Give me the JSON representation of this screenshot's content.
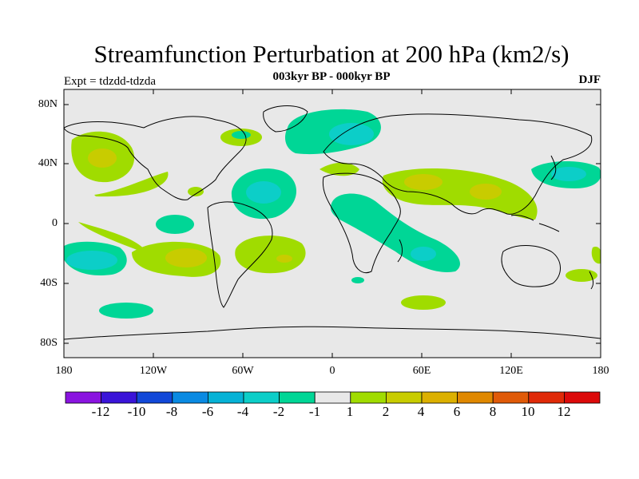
{
  "title": "Streamfunction Perturbation at 200 hPa (km2/s)",
  "subtitle": "003kyr BP - 000kyr BP",
  "left_label": "Expt = tdzdd-tdzda",
  "right_label": "DJF",
  "y_ticks": [
    "80N",
    "40N",
    "0",
    "40S",
    "80S"
  ],
  "x_ticks": [
    "180",
    "120W",
    "60W",
    "0",
    "60E",
    "120E",
    "180"
  ],
  "colorbar": {
    "labels": [
      "-12",
      "-10",
      "-8",
      "-6",
      "-4",
      "-2",
      "-1",
      "1",
      "2",
      "4",
      "6",
      "8",
      "10",
      "12"
    ],
    "colors": [
      "#8a14e0",
      "#3a14d8",
      "#1248d8",
      "#0a8ae2",
      "#06b2d6",
      "#0ccec8",
      "#00d696",
      "#e8e8e8",
      "#a0dc00",
      "#c8cc00",
      "#dcb000",
      "#e08800",
      "#e05a08",
      "#e02a08",
      "#dc0a0a"
    ]
  },
  "colors": {
    "land_ocean_bg": "#e8e8e8",
    "level_neg1": "#00d696",
    "level_neg2": "#0ccec8",
    "level_pos1": "#a0dc00",
    "level_pos2": "#c8cc00"
  }
}
